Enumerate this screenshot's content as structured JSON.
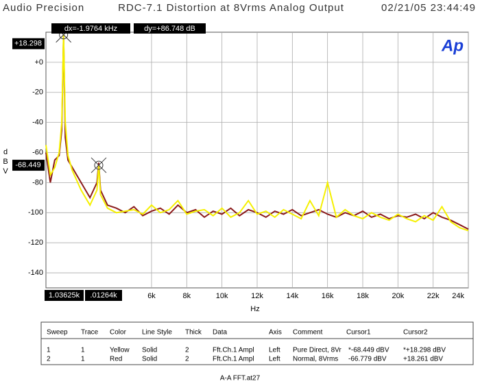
{
  "header": {
    "brand": "Audio Precision",
    "timestamp": "02/21/05 23:44:49"
  },
  "chart_data": {
    "type": "line",
    "title": "RDC-7.1 Distortion at 8Vrms Analog Output",
    "xlabel": "Hz",
    "ylabel": "dBV",
    "logo": "Ap",
    "x": [
      0,
      250,
      500,
      750,
      900,
      1000,
      1100,
      1250,
      1500,
      2000,
      2500,
      2900,
      3000,
      3100,
      3500,
      4000,
      4500,
      5000,
      5500,
      6000,
      6500,
      7000,
      7500,
      8000,
      8500,
      9000,
      9500,
      10000,
      10500,
      11000,
      11500,
      12000,
      12500,
      13000,
      13500,
      14000,
      14500,
      15000,
      15500,
      16000,
      16500,
      17000,
      17500,
      18000,
      18500,
      19000,
      19500,
      20000,
      20500,
      21000,
      21500,
      22000,
      22500,
      23000,
      23500,
      24000
    ],
    "series": [
      {
        "color": "#8b1a1a",
        "values": [
          -60,
          -80,
          -65,
          -62,
          -45,
          18.261,
          -50,
          -65,
          -70,
          -80,
          -90,
          -80,
          -66.779,
          -85,
          -95,
          -97,
          -100,
          -96,
          -102,
          -99,
          -97,
          -101,
          -95,
          -100,
          -98,
          -103,
          -99,
          -101,
          -97,
          -102,
          -98,
          -100,
          -103,
          -99,
          -101,
          -98,
          -102,
          -100,
          -98,
          -101,
          -103,
          -100,
          -102,
          -99,
          -103,
          -101,
          -104,
          -102,
          -103,
          -101,
          -104,
          -100,
          -103,
          -105,
          -108,
          -111
        ]
      },
      {
        "color": "#f5f000",
        "values": [
          -55,
          -75,
          -70,
          -60,
          -40,
          18.298,
          -40,
          -62,
          -72,
          -85,
          -95,
          -85,
          -68.449,
          -88,
          -97,
          -100,
          -99,
          -98,
          -101,
          -95,
          -100,
          -98,
          -92,
          -101,
          -99,
          -98,
          -102,
          -97,
          -103,
          -100,
          -92,
          -101,
          -99,
          -103,
          -98,
          -101,
          -104,
          -92,
          -102,
          -80,
          -103,
          -98,
          -102,
          -104,
          -100,
          -103,
          -105,
          -101,
          -104,
          -106,
          -102,
          -105,
          -96,
          -106,
          -110,
          -112
        ]
      }
    ],
    "xlim": [
      0,
      24000
    ],
    "ylim": [
      -150,
      20
    ],
    "xticks": [
      {
        "value": 6000,
        "label": "6k"
      },
      {
        "value": 8000,
        "label": "8k"
      },
      {
        "value": 10000,
        "label": "10k"
      },
      {
        "value": 12000,
        "label": "12k"
      },
      {
        "value": 14000,
        "label": "14k"
      },
      {
        "value": 16000,
        "label": "16k"
      },
      {
        "value": 18000,
        "label": "18k"
      },
      {
        "value": 20000,
        "label": "20k"
      },
      {
        "value": 22000,
        "label": "22k"
      },
      {
        "value": 24000,
        "label": "24k"
      }
    ],
    "yticks": [
      {
        "value": 0,
        "label": "+0"
      },
      -20,
      -40,
      -60,
      -80,
      -100,
      -120,
      -140
    ],
    "grid": true,
    "cursors": [
      {
        "x": 1000,
        "y": {
          "value": 18.298,
          "label": "+18.298"
        }
      },
      {
        "x": 3000,
        "y": {
          "value": -68.449,
          "label": "-68.449"
        }
      }
    ],
    "cursor_readouts": [
      "1.03625k",
      ".01264k"
    ],
    "delta_readouts": [
      "dx=-1.9764 kHz",
      "dy=+86.748 dB"
    ],
    "legend_table": {
      "headers": [
        "Sweep",
        "Trace",
        "Color",
        "Line Style",
        "Thick",
        "Data",
        "Axis",
        "Comment",
        "Cursor1",
        "Cursor2"
      ],
      "rows": [
        [
          "1",
          "1",
          "Yellow",
          "Solid",
          "2",
          "Fft.Ch.1 Ampl",
          "Left",
          "Pure Direct, 8Vr",
          "*-68.449  dBV",
          "*+18.298  dBV"
        ],
        [
          "2",
          "1",
          "Red",
          "Solid",
          "2",
          "Fft.Ch.1 Ampl",
          "Left",
          "Normal, 8Vrms",
          "-66.779  dBV",
          "+18.261  dBV"
        ]
      ]
    }
  },
  "footer": "A-A FFT.at27"
}
